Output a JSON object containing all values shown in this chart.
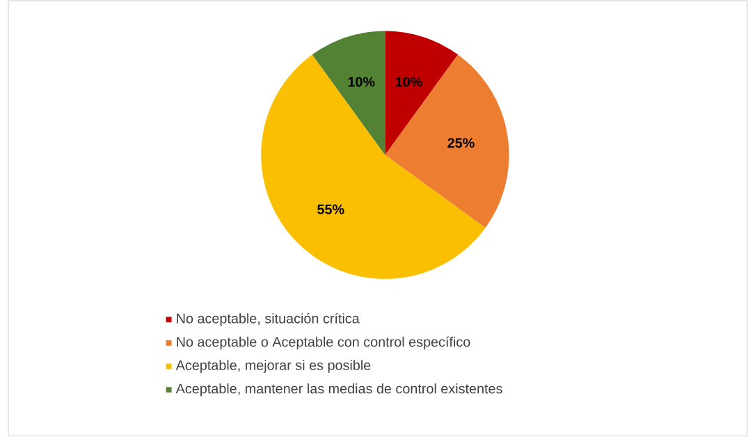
{
  "chart_data": {
    "type": "pie",
    "categories": [
      "No aceptable, situación crítica",
      "No aceptable o Aceptable con control específico",
      "Aceptable, mejorar si es posible",
      "Aceptable, mantener las medias de control existentes"
    ],
    "values": [
      10,
      25,
      55,
      10
    ],
    "value_labels": [
      "10%",
      "25%",
      "55%",
      "10%"
    ],
    "colors": [
      "#c00000",
      "#ed7d31",
      "#fabf00",
      "#548235"
    ],
    "legend": "bottom"
  }
}
